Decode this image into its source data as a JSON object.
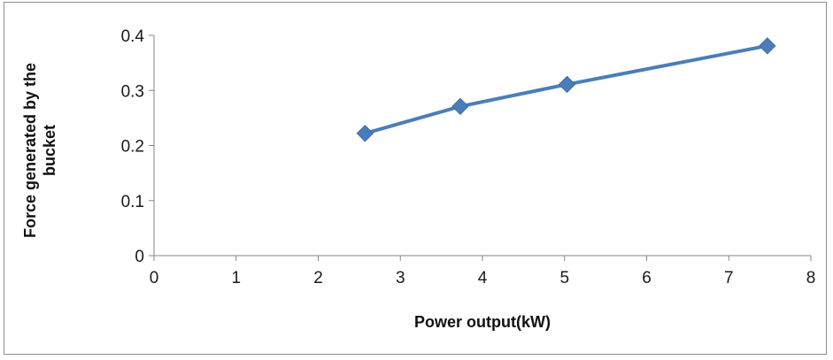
{
  "chart_data": {
    "type": "line",
    "title": "",
    "xlabel": "Power output(kW)",
    "ylabel_lines": [
      "Force generated by the",
      "bucket"
    ],
    "xlim": [
      0,
      8
    ],
    "ylim": [
      0,
      0.4
    ],
    "x_ticks": [
      "0",
      "1",
      "2",
      "3",
      "4",
      "5",
      "6",
      "7",
      "8"
    ],
    "y_ticks": [
      "0",
      "0.1",
      "0.2",
      "0.3",
      "0.4"
    ],
    "grid": false,
    "legend": "none",
    "series": [
      {
        "color": "#4a7ebb",
        "marker": "diamond",
        "x": [
          2.57,
          3.73,
          5.03,
          7.47
        ],
        "y": [
          0.222,
          0.271,
          0.311,
          0.381
        ]
      }
    ]
  }
}
